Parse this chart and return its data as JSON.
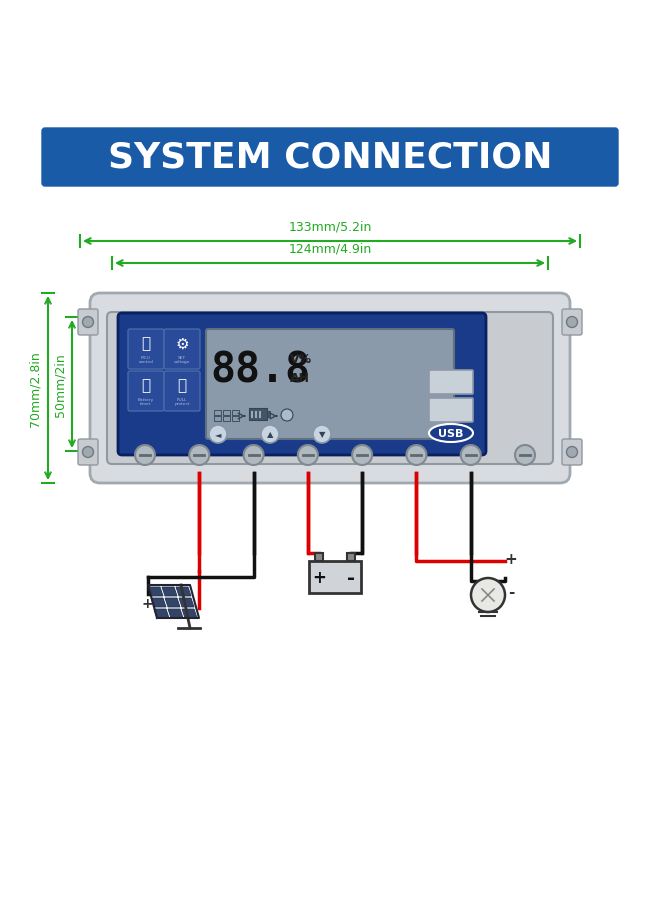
{
  "title": "SYSTEM CONNECTION",
  "title_bg": "#1a5ba8",
  "title_color": "#ffffff",
  "bg_color": "#ffffff",
  "dim_color": "#22aa22",
  "dim_133": "133mm/5.2in",
  "dim_124": "124mm/4.9in",
  "dim_70": "70mm/2.8in",
  "dim_50": "50mm/2in",
  "device_body_color": "#d8dce0",
  "device_border_color": "#a0a8b0",
  "lcd_bg": "#1a3a8a",
  "lcd_screen_bg": "#8a9aaa",
  "lcd_digit_color": "#111111",
  "usb_color": "#c8d0d8",
  "wire_red": "#dd0000",
  "wire_black": "#111111",
  "screen_edge_color": "#607080"
}
